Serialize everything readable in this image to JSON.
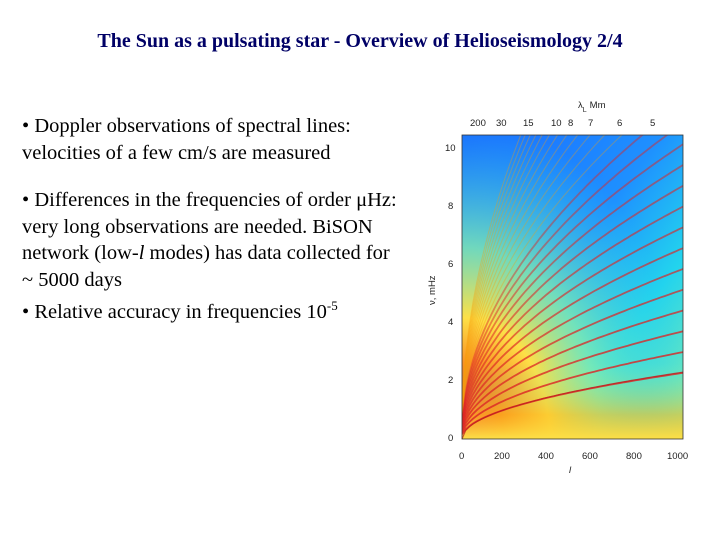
{
  "slide": {
    "title": "The Sun as a pulsating star - Overview of Helioseismology 2/4",
    "bullets": [
      {
        "marker": "•",
        "parts": [
          {
            "text": "Doppler observations of spectral lines: velocities of a few cm/s are measured",
            "style": "normal"
          }
        ]
      },
      {
        "marker": "•",
        "parts": [
          {
            "text": "Differences in the frequencies of order ",
            "style": "normal"
          },
          {
            "text": "μ",
            "style": "normal"
          },
          {
            "text": "Hz: very long observations are needed. BiSON network (low-",
            "style": "normal"
          },
          {
            "text": "l",
            "style": "italic"
          },
          {
            "text": " modes) has data collected for ",
            "style": "normal"
          },
          {
            "text": "~",
            "style": "normal"
          },
          {
            "text": " 5000 days",
            "style": "normal"
          }
        ]
      },
      {
        "marker": "•",
        "parts": [
          {
            "text": "Relative accuracy in  frequencies 10",
            "style": "normal"
          },
          {
            "text": "-5",
            "style": "sup"
          }
        ]
      }
    ]
  },
  "figure": {
    "type": "heatmap",
    "top_axis_label": "λ",
    "top_axis_label_sub": "L",
    "top_axis_unit": "Mm",
    "top_ticks": [
      "200",
      "30",
      "15",
      "10",
      "8",
      "7",
      "6",
      "5"
    ],
    "left_axis_label": "ν, mHz",
    "left_ticks": [
      "0",
      "2",
      "4",
      "6",
      "8",
      "10"
    ],
    "bottom_axis_label": "l",
    "bottom_ticks": [
      "0",
      "200",
      "400",
      "600",
      "800",
      "1000"
    ],
    "colors": {
      "low": "#1a6bff",
      "mid_low": "#22d3ee",
      "mid": "#86efac",
      "mid_high": "#fde047",
      "high": "#ef4444"
    }
  }
}
